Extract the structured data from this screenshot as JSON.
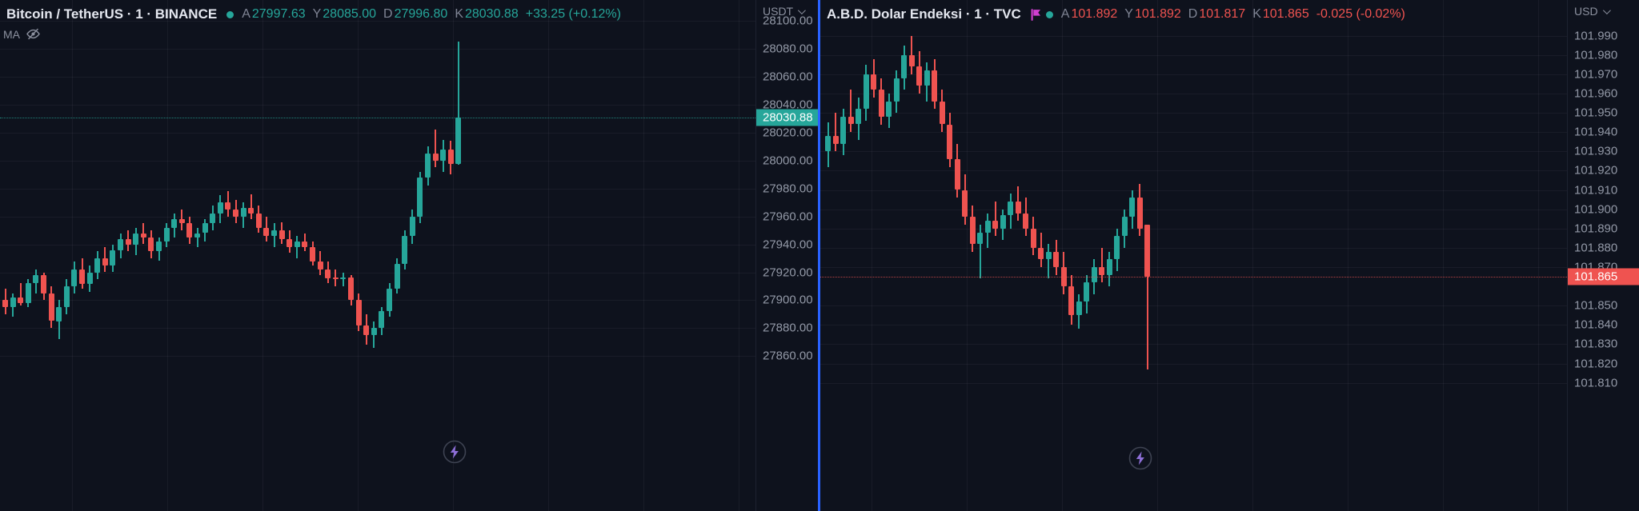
{
  "panels": {
    "left": {
      "title": "Bitcoin / TetherUS · 1 · BINANCE",
      "ohlc": [
        {
          "label": "A",
          "value": "27997.63"
        },
        {
          "label": "Y",
          "value": "28085.00"
        },
        {
          "label": "D",
          "value": "27996.80"
        },
        {
          "label": "K",
          "value": "28030.88"
        }
      ],
      "change": "+33.25 (+0.12%)",
      "indicator_label": "MA",
      "axis_unit": "USDT",
      "price_tag": "28030.88"
    },
    "right": {
      "title": "A.B.D. Dolar Endeksi · 1 · TVC",
      "ohlc": [
        {
          "label": "A",
          "value": "101.892"
        },
        {
          "label": "Y",
          "value": "101.892"
        },
        {
          "label": "D",
          "value": "101.817"
        },
        {
          "label": "K",
          "value": "101.865"
        }
      ],
      "change": "-0.025 (-0.02%)",
      "axis_unit": "USD",
      "price_tag": "101.865"
    }
  },
  "colors": {
    "up": "#26a69a",
    "down": "#ef5350",
    "divider": "#2962ff",
    "background": "#0e121d",
    "text_primary": "#e4e7ef",
    "text_secondary": "#8c919f",
    "flag": "#d13fd1",
    "bolt": "#8e6fd8"
  },
  "icons": {
    "status_dot": "filled-circle",
    "indicator_visibility": "eye-slash",
    "axis_menu": "chevron-down",
    "quick_action": "lightning-bolt",
    "symbol_badge": "flag"
  },
  "chart_data": [
    {
      "id": "btc",
      "type": "candlestick",
      "title": "Bitcoin / TetherUS",
      "interval": "1",
      "source": "BINANCE",
      "unit": "USDT",
      "ylim": [
        27749,
        28115
      ],
      "grid": true,
      "legend_position": "top-left",
      "ticks": [
        "28100.00",
        "28080.00",
        "28060.00",
        "28040.00",
        "28020.00",
        "28000.00",
        "27980.00",
        "27960.00",
        "27940.00",
        "27920.00",
        "27900.00",
        "27880.00",
        "27860.00"
      ],
      "last_price": 28030.88,
      "direction": "up",
      "price_tag": "28030.88",
      "layout": {
        "x0": 3,
        "spacing": 9.6,
        "body": 7,
        "vgrid_offset": 90,
        "vgrid_step": 119
      },
      "candles": [
        [
          27900,
          27908,
          27890,
          27895
        ],
        [
          27895,
          27905,
          27888,
          27902
        ],
        [
          27902,
          27912,
          27896,
          27898
        ],
        [
          27898,
          27915,
          27895,
          27912
        ],
        [
          27912,
          27922,
          27905,
          27918
        ],
        [
          27918,
          27920,
          27900,
          27905
        ],
        [
          27905,
          27910,
          27880,
          27885
        ],
        [
          27885,
          27900,
          27872,
          27895
        ],
        [
          27895,
          27915,
          27890,
          27910
        ],
        [
          27910,
          27928,
          27905,
          27922
        ],
        [
          27922,
          27930,
          27908,
          27912
        ],
        [
          27912,
          27925,
          27906,
          27920
        ],
        [
          27920,
          27935,
          27915,
          27930
        ],
        [
          27930,
          27938,
          27920,
          27925
        ],
        [
          27925,
          27940,
          27920,
          27936
        ],
        [
          27936,
          27948,
          27930,
          27944
        ],
        [
          27944,
          27950,
          27935,
          27940
        ],
        [
          27940,
          27952,
          27932,
          27948
        ],
        [
          27948,
          27955,
          27940,
          27945
        ],
        [
          27945,
          27950,
          27930,
          27935
        ],
        [
          27935,
          27945,
          27928,
          27942
        ],
        [
          27942,
          27955,
          27938,
          27952
        ],
        [
          27952,
          27962,
          27945,
          27958
        ],
        [
          27958,
          27965,
          27950,
          27955
        ],
        [
          27955,
          27960,
          27940,
          27945
        ],
        [
          27945,
          27952,
          27938,
          27948
        ],
        [
          27948,
          27958,
          27942,
          27955
        ],
        [
          27955,
          27968,
          27950,
          27962
        ],
        [
          27962,
          27975,
          27955,
          27970
        ],
        [
          27970,
          27978,
          27960,
          27965
        ],
        [
          27965,
          27972,
          27955,
          27960
        ],
        [
          27960,
          27970,
          27952,
          27966
        ],
        [
          27966,
          27976,
          27958,
          27962
        ],
        [
          27962,
          27968,
          27948,
          27952
        ],
        [
          27952,
          27960,
          27942,
          27946
        ],
        [
          27946,
          27955,
          27938,
          27950
        ],
        [
          27950,
          27956,
          27940,
          27944
        ],
        [
          27944,
          27950,
          27934,
          27938
        ],
        [
          27938,
          27946,
          27930,
          27942
        ],
        [
          27942,
          27948,
          27935,
          27938
        ],
        [
          27938,
          27942,
          27925,
          27928
        ],
        [
          27928,
          27935,
          27918,
          27922
        ],
        [
          27922,
          27928,
          27912,
          27916
        ],
        [
          27916,
          27922,
          27910,
          27915
        ],
        [
          27915,
          27920,
          27910,
          27916
        ],
        [
          27916,
          27918,
          27896,
          27900
        ],
        [
          27900,
          27905,
          27878,
          27882
        ],
        [
          27882,
          27890,
          27868,
          27875
        ],
        [
          27875,
          27885,
          27866,
          27880
        ],
        [
          27880,
          27895,
          27875,
          27892
        ],
        [
          27892,
          27912,
          27888,
          27908
        ],
        [
          27908,
          27930,
          27905,
          27926
        ],
        [
          27926,
          27950,
          27922,
          27946
        ],
        [
          27946,
          27965,
          27940,
          27960
        ],
        [
          27960,
          27992,
          27955,
          27988
        ],
        [
          27988,
          28010,
          27982,
          28005
        ],
        [
          28005,
          28022,
          27995,
          28000
        ],
        [
          28000,
          28015,
          27992,
          28008
        ],
        [
          28008,
          28014,
          27990,
          27997.63
        ],
        [
          27997.63,
          28085,
          27996.8,
          28030.88
        ]
      ]
    },
    {
      "id": "dxy",
      "type": "candlestick",
      "title": "A.B.D. Dolar Endeksi",
      "interval": "1",
      "source": "TVC",
      "unit": "USD",
      "ylim": [
        101.7435,
        102.0085
      ],
      "grid": true,
      "legend_position": "top-left",
      "ticks": [
        "101.990",
        "101.980",
        "101.970",
        "101.960",
        "101.950",
        "101.940",
        "101.930",
        "101.920",
        "101.910",
        "101.900",
        "101.890",
        "101.880",
        "101.870",
        "101.850",
        "101.840",
        "101.830",
        "101.820",
        "101.810"
      ],
      "last_price": 101.865,
      "direction": "down",
      "price_tag": "101.865",
      "layout": {
        "x0": 6,
        "spacing": 9.5,
        "body": 7,
        "vgrid_offset": 64,
        "vgrid_step": 119
      },
      "candles": [
        [
          101.93,
          101.945,
          101.922,
          101.938
        ],
        [
          101.938,
          101.95,
          101.93,
          101.934
        ],
        [
          101.934,
          101.952,
          101.928,
          101.948
        ],
        [
          101.948,
          101.962,
          101.94,
          101.944
        ],
        [
          101.944,
          101.958,
          101.936,
          101.952
        ],
        [
          101.952,
          101.975,
          101.946,
          101.97
        ],
        [
          101.97,
          101.978,
          101.958,
          101.962
        ],
        [
          101.962,
          101.968,
          101.944,
          101.948
        ],
        [
          101.948,
          101.96,
          101.942,
          101.956
        ],
        [
          101.956,
          101.972,
          101.95,
          101.968
        ],
        [
          101.968,
          101.985,
          101.962,
          101.98
        ],
        [
          101.98,
          101.99,
          101.97,
          101.974
        ],
        [
          101.974,
          101.982,
          101.96,
          101.964
        ],
        [
          101.964,
          101.976,
          101.956,
          101.972
        ],
        [
          101.972,
          101.978,
          101.952,
          101.956
        ],
        [
          101.956,
          101.962,
          101.94,
          101.944
        ],
        [
          101.944,
          101.95,
          101.922,
          101.926
        ],
        [
          101.926,
          101.934,
          101.906,
          101.91
        ],
        [
          101.91,
          101.918,
          101.892,
          101.896
        ],
        [
          101.896,
          101.902,
          101.878,
          101.882
        ],
        [
          101.882,
          101.892,
          101.864,
          101.888
        ],
        [
          101.888,
          101.898,
          101.88,
          101.894
        ],
        [
          101.894,
          101.904,
          101.886,
          101.89
        ],
        [
          101.89,
          101.9,
          101.884,
          101.897
        ],
        [
          101.897,
          101.908,
          101.89,
          101.904
        ],
        [
          101.904,
          101.912,
          101.894,
          101.898
        ],
        [
          101.898,
          101.906,
          101.886,
          101.89
        ],
        [
          101.89,
          101.896,
          101.876,
          101.88
        ],
        [
          101.88,
          101.888,
          101.87,
          101.874
        ],
        [
          101.874,
          101.882,
          101.864,
          101.878
        ],
        [
          101.878,
          101.884,
          101.866,
          101.87
        ],
        [
          101.87,
          101.878,
          101.856,
          101.86
        ],
        [
          101.86,
          101.866,
          101.84,
          101.845
        ],
        [
          101.845,
          101.856,
          101.838,
          101.852
        ],
        [
          101.852,
          101.866,
          101.846,
          101.862
        ],
        [
          101.862,
          101.874,
          101.856,
          101.87
        ],
        [
          101.87,
          101.88,
          101.862,
          101.866
        ],
        [
          101.866,
          101.878,
          101.86,
          101.874
        ],
        [
          101.874,
          101.89,
          101.868,
          101.886
        ],
        [
          101.886,
          101.9,
          101.88,
          101.896
        ],
        [
          101.896,
          101.91,
          101.89,
          101.906
        ],
        [
          101.906,
          101.913,
          101.886,
          101.89
        ],
        [
          101.892,
          101.892,
          101.817,
          101.865
        ]
      ]
    }
  ]
}
